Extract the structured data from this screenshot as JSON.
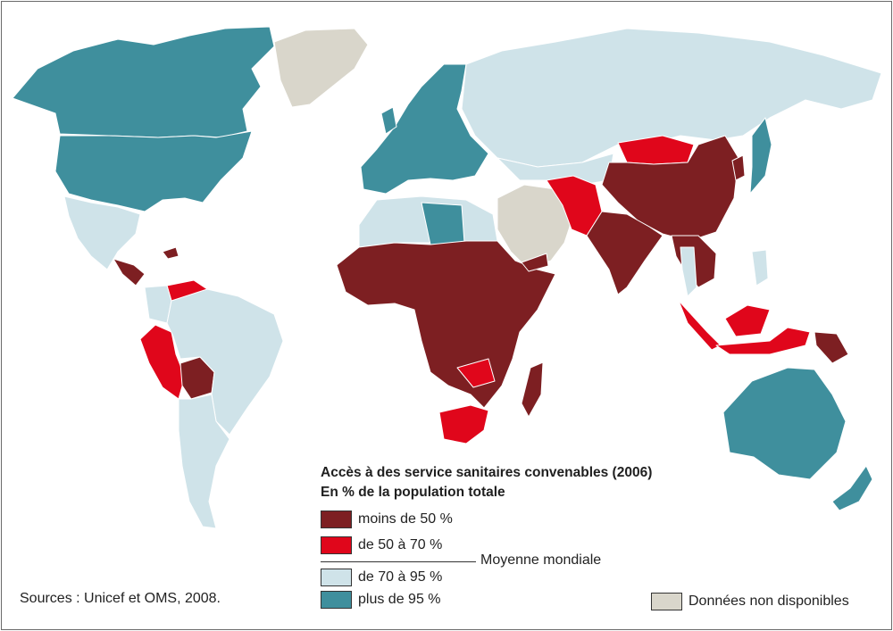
{
  "legend": {
    "title_line1": "Accès à des service sanitaires convenables (2006)",
    "title_line2": "En % de la population totale",
    "categories": [
      {
        "label": "moins de 50 %",
        "color": "#7d1f22"
      },
      {
        "label": "de 50 à 70 %",
        "color": "#e0061b"
      },
      {
        "label": "de 70 à 95 %",
        "color": "#cfe3e9"
      },
      {
        "label": "plus de 95 %",
        "color": "#3f8f9d"
      }
    ],
    "world_average_label": "Moyenne mondiale",
    "no_data": {
      "label": "Données non disponibles",
      "color": "#d9d6cb"
    }
  },
  "source": "Sources : Unicef et OMS, 2008.",
  "regions": {
    "canada": "plus de 95 %",
    "usa": "plus de 95 %",
    "greenland": "Données non disponibles",
    "mexico": "de 70 à 95 %",
    "central_america": "moins de 50 %",
    "venezuela": "de 50 à 70 %",
    "peru": "de 50 à 70 %",
    "bolivia": "moins de 50 %",
    "brazil": "de 70 à 95 %",
    "south_cone": "de 70 à 95 %",
    "western_europe": "plus de 95 %",
    "russia": "de 70 à 95 %",
    "north_africa": "de 70 à 95 %",
    "libya": "plus de 95 %",
    "sub_saharan_africa": "moins de 50 %",
    "south_africa": "de 50 à 70 %",
    "madagascar": "moins de 50 %",
    "middle_east": "Données non disponibles",
    "mongolia": "de 50 à 70 %",
    "china": "moins de 50 %",
    "india": "moins de 50 %",
    "pakistan_afghanistan": "de 50 à 70 %",
    "southeast_asia": "moins de 50 %",
    "indonesia": "de 50 à 70 %",
    "japan": "plus de 95 %",
    "australia": "plus de 95 %",
    "new_zealand": "plus de 95 %",
    "papua_new_guinea": "moins de 50 %"
  }
}
